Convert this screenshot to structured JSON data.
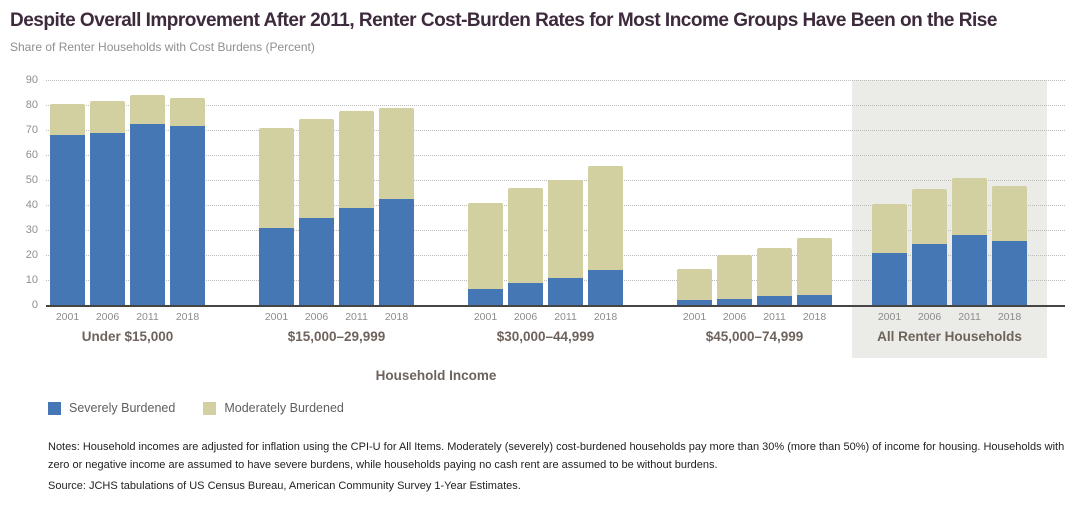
{
  "header": {
    "title": "Despite Overall Improvement After 2011, Renter Cost-Burden Rates for Most Income Groups Have Been on the Rise",
    "subtitle": "Share of Renter Households with Cost Burdens (Percent)"
  },
  "chart_data": {
    "type": "bar",
    "stacked": true,
    "title": "Despite Overall Improvement After 2011, Renter Cost-Burden Rates for Most Income Groups Have Been on the Rise",
    "ylabel": "Share of Renter Households with Cost Burdens (Percent)",
    "xlabel": "Household Income",
    "ylim": [
      0,
      90
    ],
    "yticks": [
      0,
      10,
      20,
      30,
      40,
      50,
      60,
      70,
      80,
      90
    ],
    "grid": "dotted-horizontal",
    "legend_position": "bottom-left",
    "categories": [
      "2001",
      "2006",
      "2011",
      "2018"
    ],
    "series": [
      {
        "name": "Severely Burdened",
        "color": "#4577b5"
      },
      {
        "name": "Moderately Burdened",
        "color": "#d2cfa0"
      }
    ],
    "groups": [
      {
        "label": "Under $15,000",
        "severely_burdened": [
          68,
          69,
          72.5,
          71.5
        ],
        "moderately_burdened": [
          12.5,
          12.5,
          11.5,
          11.5
        ],
        "totals": [
          80.5,
          81.5,
          84,
          83
        ],
        "highlighted": false
      },
      {
        "label": "$15,000–29,999",
        "severely_burdened": [
          31,
          35,
          39,
          42.5
        ],
        "moderately_burdened": [
          40,
          39.5,
          38.5,
          36.5
        ],
        "totals": [
          71,
          74.5,
          77.5,
          79
        ],
        "highlighted": false
      },
      {
        "label": "$30,000–44,999",
        "severely_burdened": [
          6.5,
          9,
          11,
          14
        ],
        "moderately_burdened": [
          34.5,
          38,
          39,
          41.5
        ],
        "totals": [
          41,
          47,
          50,
          55.5
        ],
        "highlighted": false
      },
      {
        "label": "$45,000–74,999",
        "severely_burdened": [
          2,
          2.5,
          3.5,
          4
        ],
        "moderately_burdened": [
          12.5,
          17.5,
          19.5,
          23
        ],
        "totals": [
          14.5,
          20,
          23,
          27
        ],
        "highlighted": false
      },
      {
        "label": "All Renter Households",
        "severely_burdened": [
          21,
          24.5,
          28,
          25.5
        ],
        "moderately_burdened": [
          19.5,
          22,
          23,
          22
        ],
        "totals": [
          40.5,
          46.5,
          51,
          47.5
        ],
        "highlighted": true
      }
    ],
    "highlight_background": "#ebebe7"
  },
  "footer": {
    "notes": "Notes: Household incomes are adjusted for inflation using the CPI-U for All Items. Moderately (severely) cost-burdened households pay more than 30% (more than 50%) of income for housing. Households with zero or negative income are assumed to have severe burdens, while households paying no cash rent are assumed to be without burdens.",
    "source": "Source: JCHS tabulations of US Census Bureau, American Community Survey 1-Year Estimates."
  }
}
